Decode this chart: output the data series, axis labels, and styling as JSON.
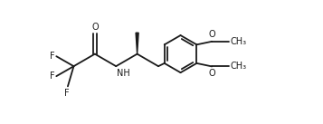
{
  "bg": "#ffffff",
  "lc": "#1a1a1a",
  "lw": 1.3,
  "fs": 7.0,
  "fig_w": 3.57,
  "fig_h": 1.37,
  "dpi": 100,
  "xlim": [
    -0.3,
    9.8
  ],
  "ylim": [
    0.0,
    5.8
  ]
}
